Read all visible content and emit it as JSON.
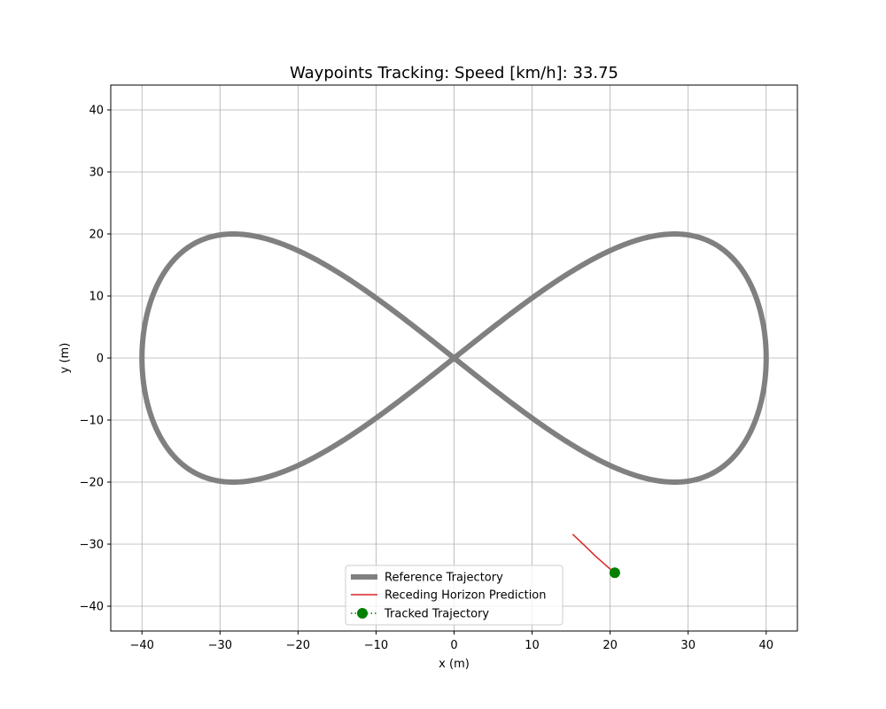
{
  "chart_data": {
    "type": "line",
    "title": "Waypoints Tracking: Speed [km/h]: 33.75",
    "xlabel": "x (m)",
    "ylabel": "y (m)",
    "xlim": [
      -44,
      44
    ],
    "ylim": [
      -44,
      44
    ],
    "xticks": [
      -40,
      -30,
      -20,
      -10,
      0,
      10,
      20,
      30,
      40
    ],
    "yticks": [
      -40,
      -30,
      -20,
      -10,
      0,
      10,
      20,
      30,
      40
    ],
    "xtick_labels": [
      "−40",
      "−30",
      "−20",
      "−10",
      "0",
      "10",
      "20",
      "30",
      "40"
    ],
    "ytick_labels": [
      "−40",
      "−30",
      "−20",
      "−10",
      "0",
      "10",
      "20",
      "30",
      "40"
    ],
    "grid": true,
    "legend_position": "bottom-center",
    "series": [
      {
        "name": "Reference Trajectory",
        "color": "#808080",
        "style": "thick-line",
        "parametric": "x = 40·sin(t), y = 40·sin(t)·cos(t), t ∈ [0, 2π]"
      },
      {
        "name": "Receding Horizon Prediction",
        "color": "#d62728",
        "style": "thin-line",
        "x": [
          15.2,
          16.2,
          17.2,
          18.1,
          19.0,
          19.8,
          20.6
        ],
        "y": [
          -28.4,
          -29.6,
          -30.8,
          -31.9,
          -32.9,
          -33.8,
          -34.6
        ]
      },
      {
        "name": "Tracked Trajectory",
        "color": "#008000",
        "style": "dotted-line-with-markers",
        "x": [
          20.6
        ],
        "y": [
          -34.6
        ]
      }
    ]
  }
}
